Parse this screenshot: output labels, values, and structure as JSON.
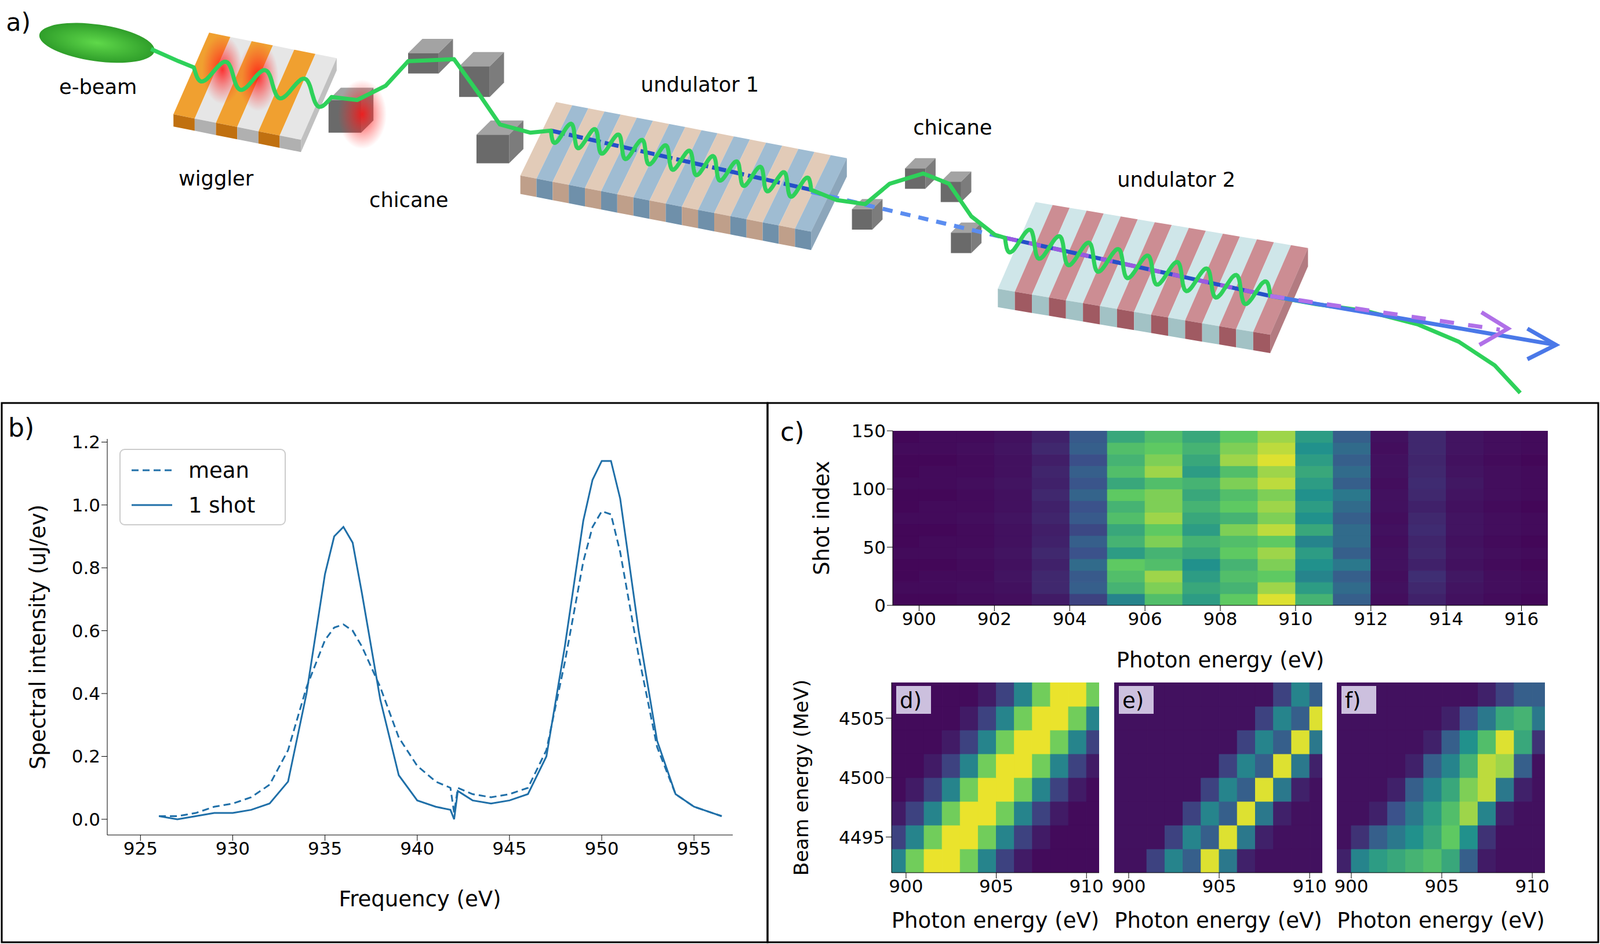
{
  "diagram": {
    "label": "a)",
    "components": {
      "e_beam": "e-beam",
      "wiggler": "wiggler",
      "chicane_1": "chicane",
      "undulator_1": "undulator 1",
      "chicane_2": "chicane",
      "undulator_2": "undulator 2"
    }
  },
  "chart_data": [
    {
      "panel_label": "b)",
      "type": "line",
      "x_label": "Frequency (eV)",
      "y_label": "Spectral intensity (uJ/ev)",
      "x": [
        926,
        927,
        928,
        929,
        930,
        931,
        932,
        933,
        934,
        935,
        935.5,
        936,
        936.5,
        937,
        938,
        939,
        940,
        941,
        941.8,
        942,
        942.2,
        943,
        944,
        945,
        946,
        947,
        948,
        949,
        949.5,
        950,
        950.5,
        951,
        952,
        953,
        954,
        955,
        956,
        956.5
      ],
      "series": [
        {
          "name": "mean",
          "color": "#1f6fa8",
          "line_style": "dashed",
          "values": [
            0.01,
            0.01,
            0.02,
            0.04,
            0.05,
            0.07,
            0.11,
            0.22,
            0.42,
            0.57,
            0.61,
            0.62,
            0.6,
            0.55,
            0.42,
            0.26,
            0.17,
            0.12,
            0.1,
            0.02,
            0.1,
            0.08,
            0.07,
            0.08,
            0.1,
            0.22,
            0.5,
            0.82,
            0.93,
            0.98,
            0.97,
            0.85,
            0.52,
            0.23,
            0.08,
            0.04,
            0.02,
            0.01
          ]
        },
        {
          "name": "1 shot",
          "color": "#1f6fa8",
          "line_style": "solid",
          "values": [
            0.01,
            0.0,
            0.01,
            0.02,
            0.02,
            0.03,
            0.05,
            0.12,
            0.4,
            0.78,
            0.9,
            0.93,
            0.88,
            0.72,
            0.38,
            0.14,
            0.06,
            0.04,
            0.03,
            0.0,
            0.09,
            0.06,
            0.05,
            0.06,
            0.08,
            0.2,
            0.55,
            0.95,
            1.08,
            1.14,
            1.14,
            1.02,
            0.6,
            0.25,
            0.08,
            0.04,
            0.02,
            0.01
          ]
        }
      ],
      "xlim": [
        923.2,
        957.1
      ],
      "xticks": [
        925,
        930,
        935,
        940,
        945,
        950,
        955
      ],
      "ylim": [
        -0.05,
        1.21
      ],
      "yticks": [
        {
          "value": 0,
          "label": "0.0"
        },
        0.2,
        0.4,
        0.6,
        0.8,
        {
          "value": 1,
          "label": "1.0"
        },
        1.2
      ],
      "legend": "upper left"
    },
    {
      "panel_label": "c)",
      "type": "heatmap",
      "x_label": "Photon energy (eV)",
      "y_label": "Shot index",
      "x_edges": [
        899,
        900,
        901,
        902,
        903,
        904,
        905,
        906,
        907,
        908,
        909,
        910,
        911,
        912,
        913,
        914,
        915,
        916,
        917
      ],
      "y_edges": [
        0,
        10,
        20,
        30,
        40,
        50,
        60,
        70,
        80,
        90,
        100,
        110,
        120,
        130,
        140,
        150
      ],
      "cells": [
        [
          0.02,
          0.02,
          0.03,
          0.04,
          0.08,
          0.2,
          0.45,
          0.7,
          0.55,
          0.75,
          0.95,
          0.65,
          0.3,
          0.04,
          0.1,
          0.05,
          0.03,
          0.02
        ],
        [
          0.03,
          0.03,
          0.04,
          0.05,
          0.12,
          0.3,
          0.65,
          0.8,
          0.6,
          0.65,
          0.85,
          0.55,
          0.35,
          0.05,
          0.12,
          0.06,
          0.04,
          0.03
        ],
        [
          0.02,
          0.03,
          0.03,
          0.06,
          0.12,
          0.28,
          0.7,
          0.85,
          0.55,
          0.7,
          0.75,
          0.45,
          0.3,
          0.04,
          0.14,
          0.07,
          0.04,
          0.03
        ],
        [
          0.02,
          0.02,
          0.03,
          0.05,
          0.1,
          0.35,
          0.75,
          0.7,
          0.5,
          0.65,
          0.8,
          0.5,
          0.4,
          0.05,
          0.1,
          0.05,
          0.03,
          0.02
        ],
        [
          0.03,
          0.03,
          0.04,
          0.06,
          0.12,
          0.25,
          0.55,
          0.65,
          0.6,
          0.75,
          0.85,
          0.55,
          0.3,
          0.05,
          0.12,
          0.06,
          0.04,
          0.03
        ],
        [
          0.02,
          0.03,
          0.03,
          0.05,
          0.1,
          0.3,
          0.65,
          0.8,
          0.65,
          0.7,
          0.75,
          0.45,
          0.35,
          0.04,
          0.11,
          0.05,
          0.03,
          0.02
        ],
        [
          0.02,
          0.02,
          0.03,
          0.05,
          0.09,
          0.22,
          0.6,
          0.75,
          0.55,
          0.8,
          0.9,
          0.6,
          0.35,
          0.05,
          0.13,
          0.06,
          0.04,
          0.03
        ],
        [
          0.03,
          0.03,
          0.04,
          0.06,
          0.11,
          0.28,
          0.7,
          0.85,
          0.6,
          0.65,
          0.8,
          0.5,
          0.3,
          0.04,
          0.12,
          0.06,
          0.04,
          0.03
        ],
        [
          0.02,
          0.03,
          0.03,
          0.05,
          0.1,
          0.25,
          0.65,
          0.8,
          0.65,
          0.75,
          0.85,
          0.55,
          0.35,
          0.05,
          0.1,
          0.05,
          0.03,
          0.02
        ],
        [
          0.02,
          0.02,
          0.03,
          0.05,
          0.12,
          0.32,
          0.75,
          0.8,
          0.6,
          0.7,
          0.8,
          0.5,
          0.4,
          0.05,
          0.12,
          0.06,
          0.04,
          0.03
        ],
        [
          0.03,
          0.03,
          0.04,
          0.06,
          0.1,
          0.26,
          0.6,
          0.7,
          0.65,
          0.8,
          0.9,
          0.55,
          0.3,
          0.04,
          0.13,
          0.07,
          0.04,
          0.03
        ],
        [
          0.02,
          0.03,
          0.03,
          0.05,
          0.11,
          0.3,
          0.7,
          0.85,
          0.55,
          0.7,
          0.85,
          0.6,
          0.35,
          0.05,
          0.12,
          0.06,
          0.04,
          0.03
        ],
        [
          0.02,
          0.02,
          0.03,
          0.05,
          0.09,
          0.24,
          0.65,
          0.8,
          0.6,
          0.85,
          0.95,
          0.55,
          0.3,
          0.05,
          0.11,
          0.05,
          0.03,
          0.02
        ],
        [
          0.03,
          0.03,
          0.04,
          0.06,
          0.12,
          0.3,
          0.7,
          0.75,
          0.65,
          0.8,
          0.9,
          0.5,
          0.35,
          0.04,
          0.12,
          0.06,
          0.04,
          0.03
        ],
        [
          0.02,
          0.03,
          0.03,
          0.05,
          0.1,
          0.28,
          0.6,
          0.7,
          0.6,
          0.75,
          0.85,
          0.55,
          0.3,
          0.05,
          0.12,
          0.06,
          0.04,
          0.03
        ]
      ],
      "xlim": [
        899.3,
        916.7
      ],
      "xticks": [
        900,
        902,
        904,
        906,
        908,
        910,
        912,
        914,
        916
      ],
      "ylim": [
        0,
        150
      ],
      "yticks": [
        0,
        50,
        100,
        150
      ]
    },
    {
      "panel_label": "d)",
      "type": "heatmap",
      "x_label": "Photon energy (eV)",
      "y_label": "Beam energy (MeV)",
      "x_edges": [
        899,
        900,
        901,
        902,
        903,
        904,
        905,
        906,
        907,
        908,
        909,
        910,
        911
      ],
      "y_edges": [
        4492,
        4494,
        4496,
        4498,
        4500,
        4502,
        4504,
        4506,
        4508
      ],
      "cells": [
        [
          0.45,
          0.78,
          0.97,
          0.97,
          0.78,
          0.45,
          0.2,
          0.08,
          0.03,
          0.03,
          0.03,
          0.03
        ],
        [
          0.2,
          0.45,
          0.78,
          0.97,
          0.97,
          0.78,
          0.45,
          0.2,
          0.08,
          0.03,
          0.03,
          0.03
        ],
        [
          0.08,
          0.2,
          0.45,
          0.78,
          0.97,
          0.97,
          0.78,
          0.45,
          0.2,
          0.08,
          0.03,
          0.03
        ],
        [
          0.03,
          0.08,
          0.2,
          0.45,
          0.78,
          0.97,
          0.97,
          0.78,
          0.45,
          0.2,
          0.08,
          0.03
        ],
        [
          0.03,
          0.03,
          0.08,
          0.2,
          0.45,
          0.78,
          0.97,
          0.97,
          0.78,
          0.45,
          0.2,
          0.08
        ],
        [
          0.03,
          0.03,
          0.03,
          0.08,
          0.2,
          0.45,
          0.78,
          0.97,
          0.97,
          0.78,
          0.45,
          0.2
        ],
        [
          0.03,
          0.03,
          0.03,
          0.03,
          0.08,
          0.2,
          0.45,
          0.78,
          0.97,
          0.97,
          0.78,
          0.45
        ],
        [
          0.03,
          0.03,
          0.03,
          0.03,
          0.03,
          0.08,
          0.2,
          0.45,
          0.78,
          0.97,
          0.97,
          0.78
        ]
      ],
      "xlim": [
        899.2,
        910.7
      ],
      "xticks": [
        900,
        905,
        910
      ],
      "ylim": [
        4492,
        4508
      ],
      "yticks": [
        4495,
        4500,
        4505
      ]
    },
    {
      "panel_label": "e)",
      "type": "heatmap",
      "x_label": "Photon energy (eV)",
      "x_edges": [
        899,
        900,
        901,
        902,
        903,
        904,
        905,
        906,
        907,
        908,
        909,
        910,
        911
      ],
      "y_edges": [
        4492,
        4494,
        4496,
        4498,
        4500,
        4502,
        4504,
        4506,
        4508
      ],
      "cells": [
        [
          0.05,
          0.05,
          0.2,
          0.45,
          0.3,
          0.95,
          0.4,
          0.1,
          0.05,
          0.05,
          0.05,
          0.05
        ],
        [
          0.05,
          0.05,
          0.05,
          0.2,
          0.45,
          0.3,
          0.95,
          0.4,
          0.1,
          0.05,
          0.05,
          0.05
        ],
        [
          0.05,
          0.05,
          0.05,
          0.05,
          0.2,
          0.45,
          0.3,
          0.95,
          0.4,
          0.1,
          0.05,
          0.05
        ],
        [
          0.05,
          0.05,
          0.05,
          0.05,
          0.05,
          0.2,
          0.45,
          0.3,
          0.95,
          0.4,
          0.1,
          0.05
        ],
        [
          0.05,
          0.05,
          0.05,
          0.05,
          0.05,
          0.05,
          0.2,
          0.45,
          0.3,
          0.95,
          0.4,
          0.1
        ],
        [
          0.05,
          0.05,
          0.05,
          0.05,
          0.05,
          0.05,
          0.05,
          0.2,
          0.45,
          0.3,
          0.95,
          0.4
        ],
        [
          0.05,
          0.05,
          0.05,
          0.05,
          0.05,
          0.05,
          0.05,
          0.05,
          0.2,
          0.45,
          0.3,
          0.95
        ],
        [
          0.05,
          0.05,
          0.05,
          0.05,
          0.05,
          0.05,
          0.05,
          0.05,
          0.05,
          0.2,
          0.45,
          0.3
        ]
      ],
      "xlim": [
        899.2,
        910.7
      ],
      "xticks": [
        900,
        905,
        910
      ],
      "ylim": [
        4492,
        4508
      ],
      "tick_labels": "x"
    },
    {
      "panel_label": "f)",
      "type": "heatmap",
      "x_label": "Photon energy (eV)",
      "x_edges": [
        899,
        900,
        901,
        902,
        903,
        904,
        905,
        906,
        907,
        908,
        909,
        910,
        911
      ],
      "y_edges": [
        4492,
        4494,
        4496,
        4498,
        4500,
        4502,
        4504,
        4506,
        4508
      ],
      "cells": [
        [
          0.1,
          0.45,
          0.55,
          0.6,
          0.65,
          0.7,
          0.6,
          0.3,
          0.08,
          0.05,
          0.05,
          0.05
        ],
        [
          0.05,
          0.15,
          0.3,
          0.4,
          0.5,
          0.6,
          0.75,
          0.5,
          0.15,
          0.05,
          0.05,
          0.05
        ],
        [
          0.05,
          0.05,
          0.1,
          0.25,
          0.4,
          0.55,
          0.7,
          0.85,
          0.45,
          0.1,
          0.05,
          0.05
        ],
        [
          0.05,
          0.05,
          0.05,
          0.1,
          0.3,
          0.45,
          0.6,
          0.8,
          0.9,
          0.4,
          0.1,
          0.05
        ],
        [
          0.05,
          0.05,
          0.05,
          0.05,
          0.1,
          0.3,
          0.45,
          0.65,
          0.9,
          0.85,
          0.3,
          0.05
        ],
        [
          0.05,
          0.05,
          0.05,
          0.05,
          0.05,
          0.1,
          0.3,
          0.5,
          0.7,
          0.95,
          0.6,
          0.15
        ],
        [
          0.05,
          0.05,
          0.05,
          0.05,
          0.05,
          0.05,
          0.1,
          0.25,
          0.4,
          0.6,
          0.65,
          0.4
        ],
        [
          0.05,
          0.05,
          0.05,
          0.05,
          0.05,
          0.05,
          0.05,
          0.05,
          0.1,
          0.2,
          0.3,
          0.3
        ]
      ],
      "xlim": [
        899.2,
        910.7
      ],
      "xticks": [
        900,
        905,
        910
      ],
      "ylim": [
        4492,
        4508
      ],
      "tick_labels": "x"
    }
  ]
}
